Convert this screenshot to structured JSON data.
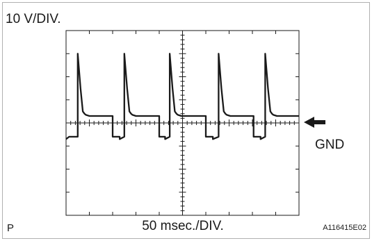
{
  "texts": {
    "volt_div": "10 V/DIV.",
    "time_div": "50 msec./DIV.",
    "gnd": "GND",
    "corner": "P",
    "figure_id": "A116415E02"
  },
  "colors": {
    "ink": "#1a1a1a",
    "background": "#ffffff",
    "border": "#b0b0b0"
  },
  "icons": {
    "gnd_marker": "arrow-left-icon"
  },
  "chart_data": {
    "type": "line",
    "title": "",
    "xlabel": "50 msec./DIV.",
    "ylabel": "10 V/DIV.",
    "x_unit": "div",
    "y_unit": "div",
    "xlim": [
      0,
      10
    ],
    "ylim": [
      -4,
      4
    ],
    "grid": true,
    "grid_style": "center crosshair with minor ticks",
    "reference_marker": "GND (y = 0)",
    "series": [
      {
        "x": [
          0,
          0.13,
          0.5,
          0.5,
          0.62,
          0.72,
          0.79,
          0.85,
          1.0,
          1.4,
          2.0,
          2.0,
          2.3,
          2.3,
          2.5,
          2.5,
          2.62,
          2.72,
          2.79,
          2.85,
          3.0,
          3.4,
          4.0,
          4.0,
          4.25,
          4.25,
          4.45,
          4.45,
          4.57,
          4.67,
          4.74,
          4.8,
          4.95,
          5.35,
          6.0,
          6.0,
          6.3,
          6.3,
          6.55,
          6.55,
          6.67,
          6.77,
          6.84,
          6.9,
          7.05,
          7.45,
          8.05,
          8.05,
          8.35,
          8.35,
          8.55,
          8.55,
          8.67,
          8.77,
          8.84,
          8.9,
          9.05,
          9.45,
          10.0
        ],
        "y": [
          -0.7,
          -0.6,
          -0.6,
          3.0,
          1.5,
          0.5,
          0.4,
          0.35,
          0.3,
          0.3,
          0.3,
          -0.6,
          -0.6,
          -0.7,
          -0.6,
          3.0,
          1.5,
          0.5,
          0.4,
          0.35,
          0.3,
          0.3,
          0.3,
          -0.6,
          -0.6,
          -0.7,
          -0.6,
          3.0,
          1.5,
          0.5,
          0.4,
          0.35,
          0.3,
          0.3,
          0.3,
          -0.6,
          -0.6,
          -0.7,
          -0.6,
          3.0,
          1.5,
          0.5,
          0.4,
          0.35,
          0.3,
          0.3,
          0.3,
          -0.6,
          -0.6,
          -0.7,
          -0.6,
          3.0,
          1.5,
          0.5,
          0.4,
          0.35,
          0.3,
          0.3,
          0.3
        ]
      }
    ]
  }
}
